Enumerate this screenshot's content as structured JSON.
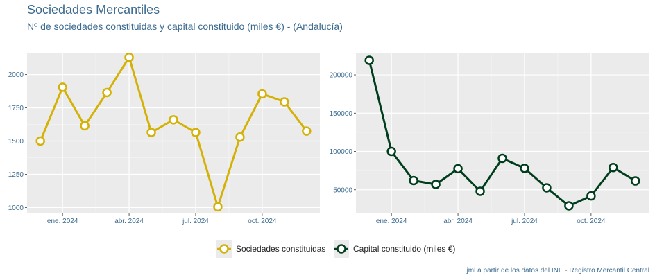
{
  "header": {
    "title": "Sociedades Mercantiles",
    "subtitle": "Nº de sociedades constituidas y capital constituido (miles €) - (Andalucía)"
  },
  "caption": "jml a partir de los datos del INE - Registro Mercantil Central",
  "legend": {
    "items": [
      {
        "label": "Sociedades constituidas",
        "color": "#d4b106"
      },
      {
        "label": "Capital constituido (miles €)",
        "color": "#003d1c"
      }
    ]
  },
  "chart_data": [
    {
      "type": "line",
      "title": "",
      "xlabel": "",
      "ylabel": "",
      "color": "#d4b106",
      "x": [
        "2023-12",
        "2024-01",
        "2024-02",
        "2024-03",
        "2024-04",
        "2024-05",
        "2024-06",
        "2024-07",
        "2024-08",
        "2024-09",
        "2024-10",
        "2024-11",
        "2024-12"
      ],
      "series": [
        {
          "name": "Sociedades constituidas",
          "values": [
            1500,
            1905,
            1615,
            1865,
            2130,
            1565,
            1660,
            1565,
            1005,
            1530,
            1855,
            1795,
            1575
          ]
        }
      ],
      "ylim": [
        955,
        2165
      ],
      "yticks": [
        1000,
        1250,
        1500,
        1750,
        2000
      ],
      "xticks": [
        {
          "label": "ene. 2024",
          "index": 1
        },
        {
          "label": "abr. 2024",
          "index": 4
        },
        {
          "label": "jul. 2024",
          "index": 7
        },
        {
          "label": "oct. 2024",
          "index": 10
        }
      ],
      "grid": true
    },
    {
      "type": "line",
      "title": "",
      "xlabel": "",
      "ylabel": "",
      "color": "#003d1c",
      "x": [
        "2023-12",
        "2024-01",
        "2024-02",
        "2024-03",
        "2024-04",
        "2024-05",
        "2024-06",
        "2024-07",
        "2024-08",
        "2024-09",
        "2024-10",
        "2024-11",
        "2024-12"
      ],
      "series": [
        {
          "name": "Capital constituido (miles €)",
          "values": [
            219000,
            100000,
            62000,
            57000,
            77500,
            48000,
            91000,
            78000,
            52500,
            29000,
            42000,
            79000,
            61500
          ]
        }
      ],
      "ylim": [
        19000,
        229000
      ],
      "yticks": [
        50000,
        100000,
        150000,
        200000
      ],
      "xticks": [
        {
          "label": "ene. 2024",
          "index": 1
        },
        {
          "label": "abr. 2024",
          "index": 4
        },
        {
          "label": "jul. 2024",
          "index": 7
        },
        {
          "label": "oct. 2024",
          "index": 10
        }
      ],
      "grid": true
    }
  ]
}
